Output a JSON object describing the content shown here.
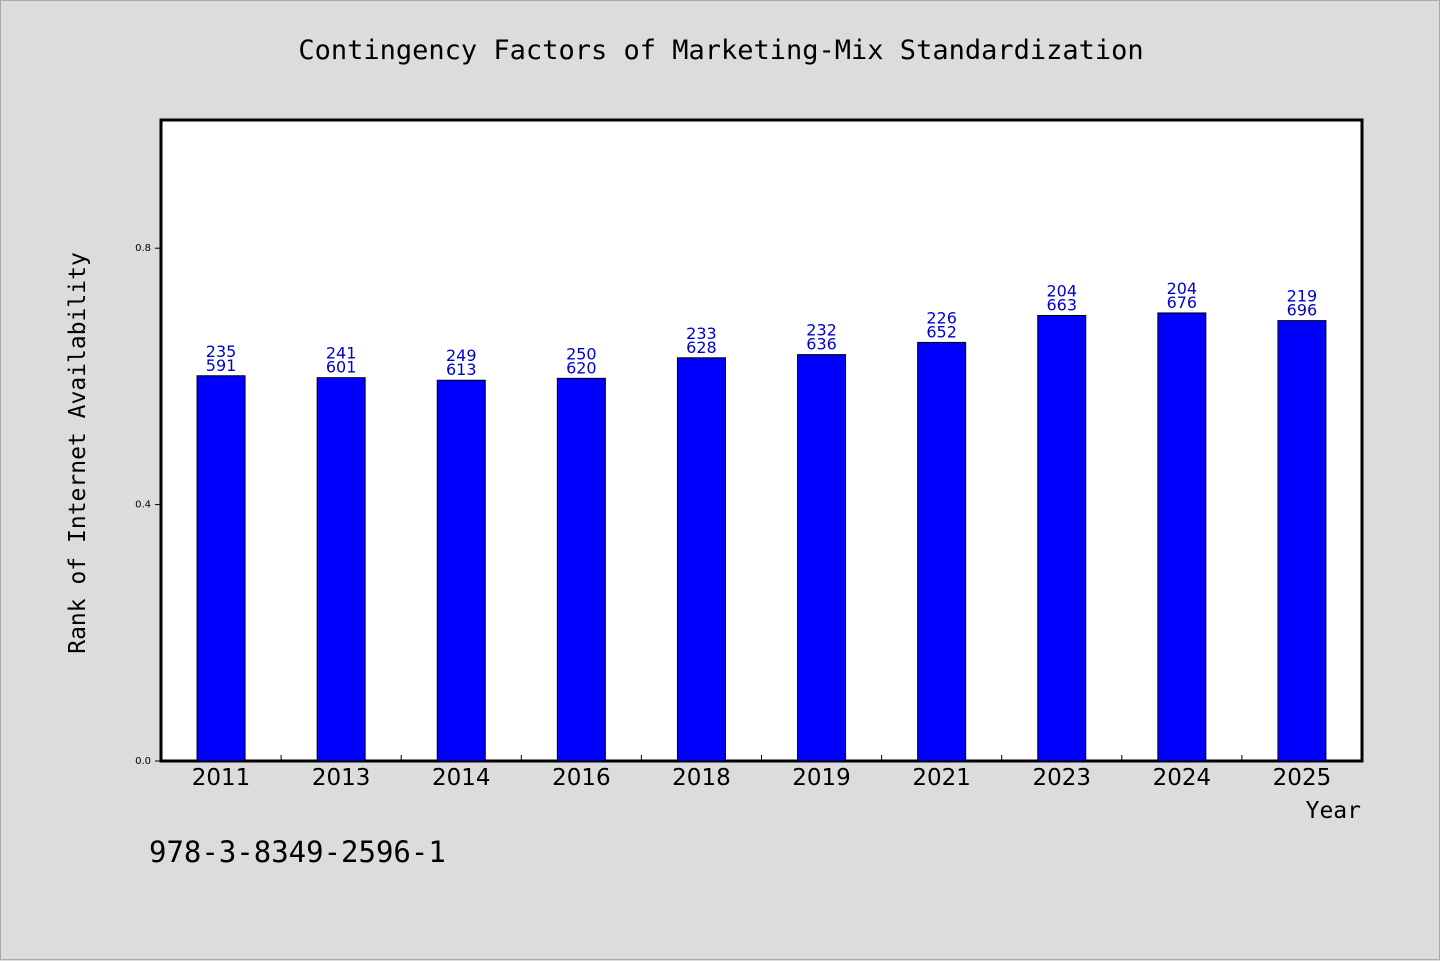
{
  "chart_data": {
    "type": "bar",
    "title": "Contingency Factors of Marketing-Mix Standardization",
    "xlabel": "Year",
    "ylabel": "Rank of Internet Availability",
    "categories": [
      "2011",
      "2013",
      "2014",
      "2016",
      "2018",
      "2019",
      "2021",
      "2023",
      "2024",
      "2025"
    ],
    "values": [
      0.601,
      0.598,
      0.594,
      0.597,
      0.629,
      0.634,
      0.653,
      0.695,
      0.699,
      0.687
    ],
    "annotations_top": [
      "235",
      "241",
      "249",
      "250",
      "233",
      "232",
      "226",
      "204",
      "204",
      "219"
    ],
    "annotations_bottom": [
      "591",
      "601",
      "613",
      "620",
      "628",
      "636",
      "652",
      "663",
      "676",
      "696"
    ],
    "yticks": [
      0.0,
      0.4,
      0.8
    ],
    "ytick_labels": [
      "0.0",
      "0.4",
      "0.8"
    ],
    "ylim": [
      0,
      1.0
    ],
    "grid": false,
    "legend": "none",
    "colors": {
      "bar": "#0000ff",
      "label": "#0000cc",
      "background": "#dcdcdc",
      "plot_background": "#ffffff"
    }
  },
  "footnote": "978-3-8349-2596-1"
}
